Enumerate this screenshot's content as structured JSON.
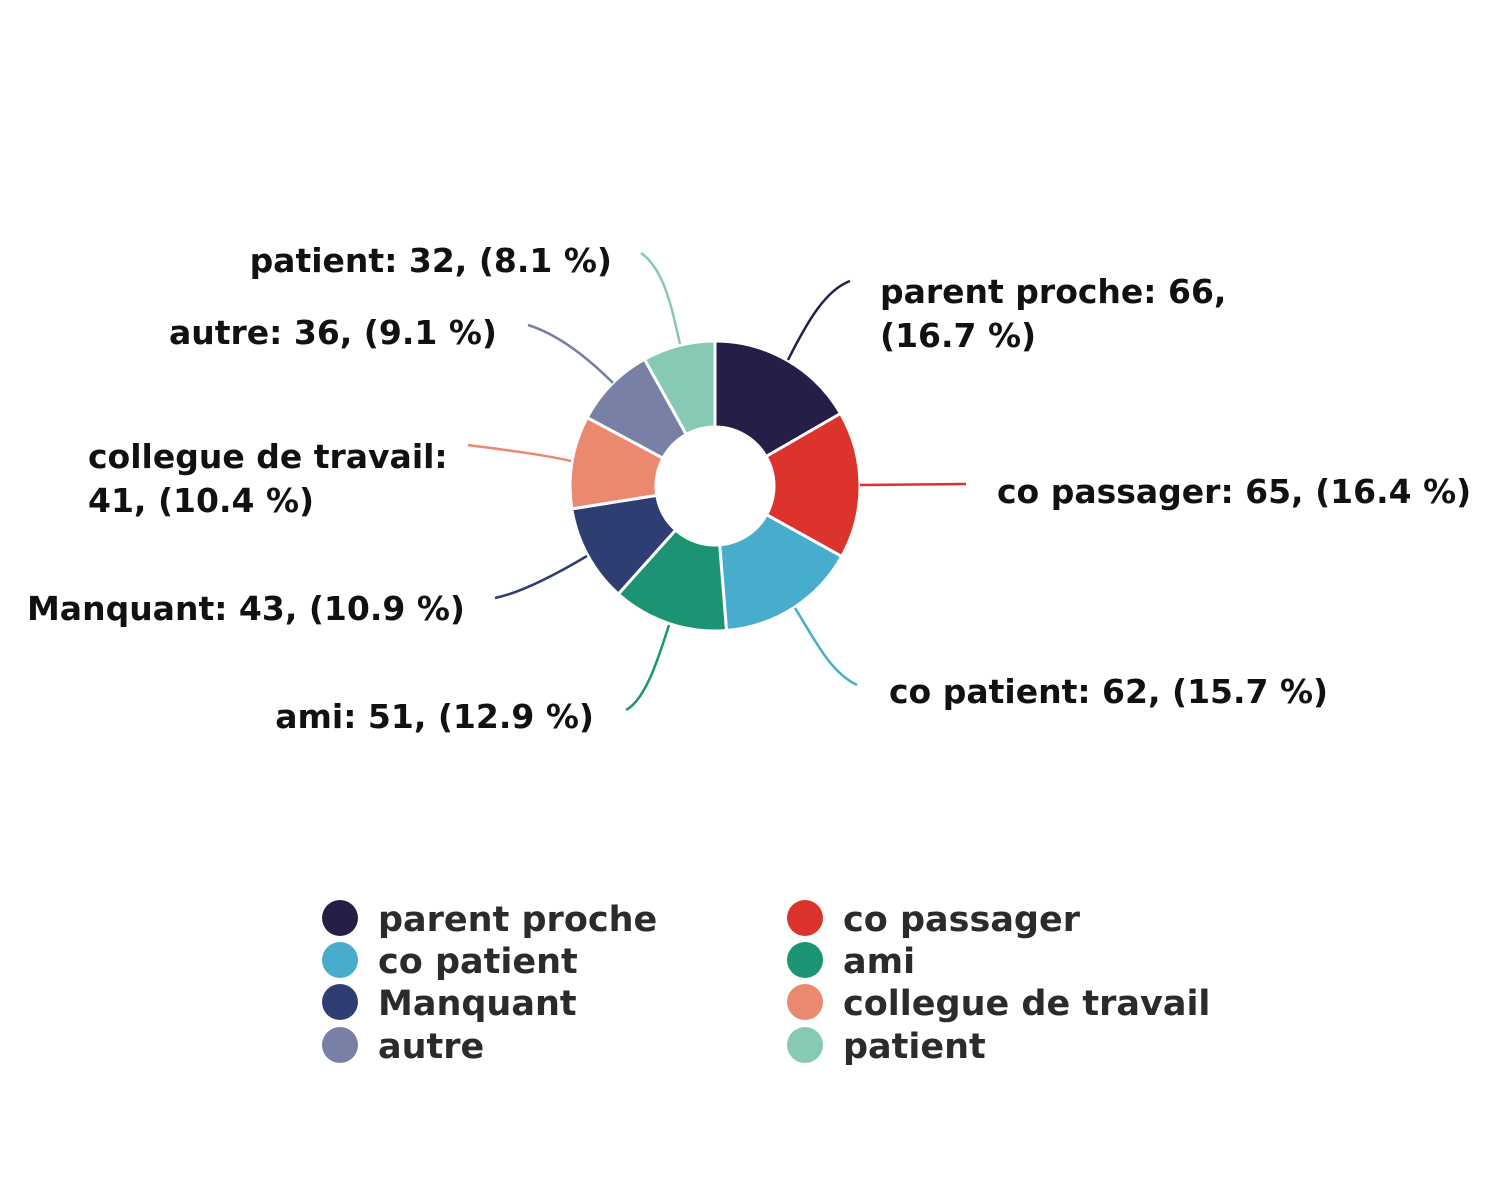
{
  "chart_data": {
    "type": "pie",
    "variant": "donut",
    "title": "",
    "legend_position": "bottom",
    "series": [
      {
        "name": "parent proche",
        "value": 66,
        "percent": 16.7,
        "color": "#251f47",
        "label": "parent proche: 66, (16.7 %)"
      },
      {
        "name": "co passager",
        "value": 65,
        "percent": 16.4,
        "color": "#dc342d",
        "label": "co passager: 65, (16.4 %)"
      },
      {
        "name": "co patient",
        "value": 62,
        "percent": 15.7,
        "color": "#48adcc",
        "label": "co patient: 62, (15.7 %)"
      },
      {
        "name": "ami",
        "value": 51,
        "percent": 12.9,
        "color": "#1c9473",
        "label": "ami: 51, (12.9 %)"
      },
      {
        "name": "Manquant",
        "value": 43,
        "percent": 10.9,
        "color": "#2f3e72",
        "label": "Manquant: 43, (10.9 %)"
      },
      {
        "name": "collegue de travail",
        "value": 41,
        "percent": 10.4,
        "color": "#ea8870",
        "label": "collegue de travail: 41, (10.4 %)"
      },
      {
        "name": "autre",
        "value": 36,
        "percent": 9.1,
        "color": "#7880a6",
        "label": "autre: 36, (9.1 %)"
      },
      {
        "name": "patient",
        "value": 32,
        "percent": 8.1,
        "color": "#87c9b4",
        "label": "patient: 32, (8.1 %)"
      }
    ]
  }
}
